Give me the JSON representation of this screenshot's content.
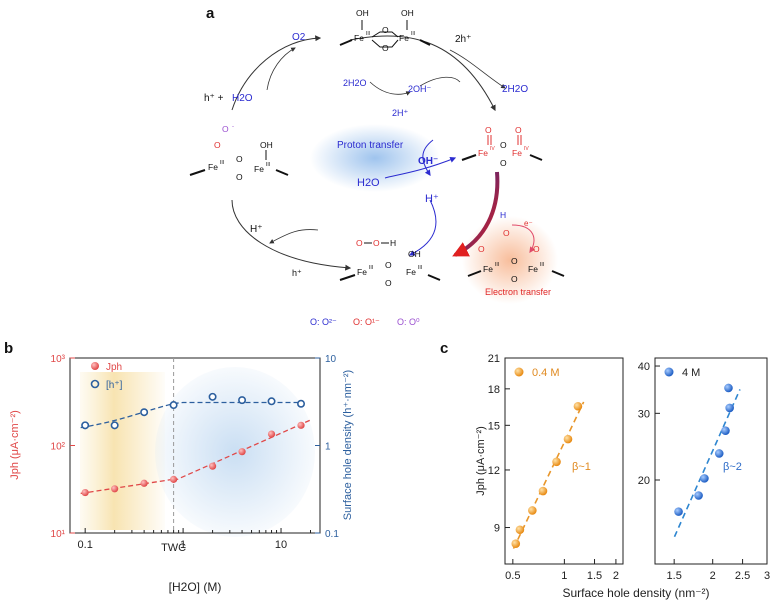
{
  "panel_a": {
    "letter": "a",
    "colors": {
      "blue": "#2b2bd0",
      "red": "#e03030",
      "purple": "#9a4fd0",
      "orange_text": "#e02828"
    },
    "labels": {
      "o2": "O2",
      "h_plus_h2o_h": "h⁺ + ",
      "h_plus_h2o_w": "H2O",
      "two_h_plus_top": "2h⁺",
      "two_h2o_right": "2H2O",
      "two_h2o_center": "2H2O",
      "two_oh": "2OH⁻",
      "two_h_plus_center": "2H⁺",
      "proton_transfer": "Proton transfer",
      "oh_minus": "OH⁻",
      "h2o_center": "H2O",
      "h_plus_center": "H⁺",
      "h_plus_left": "H⁺",
      "h_plus_small": "h⁺",
      "electron_transfer": "Electron transfer",
      "e_minus": "e⁻",
      "legend": [
        "O: O²⁻",
        "O: O¹⁻",
        "O: O⁰"
      ]
    }
  },
  "chart_data": [
    {
      "panel": "b",
      "type": "scatter",
      "x_scale": "log",
      "y_scale": "log",
      "y2_scale": "log",
      "xlabel": "[H2O] (M)",
      "ylabel": "Jph (μA·cm⁻²)",
      "y2label": "Surface hole density (h⁺·nm⁻²)",
      "xlim": [
        0.07,
        25
      ],
      "ylim": [
        10,
        1000
      ],
      "y2lim": [
        0.1,
        10
      ],
      "x_ticks": [
        0.1,
        1,
        10
      ],
      "x_tick_labels": [
        "0.1",
        "1",
        "10"
      ],
      "y_tick_labels": [
        "10¹",
        "10²",
        "10³"
      ],
      "y2_tick_labels": [
        "0.1",
        "1",
        "10"
      ],
      "annotation": "TWC",
      "twc_x": 0.8,
      "legend": [
        "Jph",
        "[h⁺]"
      ],
      "series": [
        {
          "name": "Jph",
          "axis": "left",
          "color": "#e04848",
          "x": [
            0.1,
            0.2,
            0.4,
            0.8,
            2,
            4,
            8,
            16
          ],
          "y": [
            29,
            32,
            37,
            41,
            58,
            85,
            135,
            170
          ]
        },
        {
          "name": "[h⁺]",
          "axis": "right",
          "color": "#2c5f9e",
          "x": [
            0.1,
            0.2,
            0.4,
            0.8,
            2,
            4,
            8,
            16
          ],
          "y": [
            1.7,
            1.7,
            2.4,
            2.9,
            3.6,
            3.3,
            3.2,
            3.0
          ]
        }
      ]
    },
    {
      "panel": "c-left",
      "type": "scatter",
      "x_scale": "log",
      "y_scale": "log",
      "xlabel": "Surface hole density (nm⁻²)",
      "ylabel": "Jph (μA·cm⁻²)",
      "xlim": [
        0.45,
        2.2
      ],
      "ylim": [
        7.5,
        21
      ],
      "x_ticks": [
        0.5,
        1,
        1.5,
        2
      ],
      "x_tick_labels": [
        "0.5",
        "1",
        "1.5",
        "2"
      ],
      "y_ticks": [
        9,
        12,
        15,
        18,
        21
      ],
      "y_tick_labels": [
        "9",
        "12",
        "15",
        "18",
        "21"
      ],
      "legend": [
        "0.4 M"
      ],
      "annotation": "β~1",
      "series": [
        {
          "name": "0.4 M",
          "color": "#f0a030",
          "x": [
            0.52,
            0.55,
            0.65,
            0.75,
            0.9,
            1.05,
            1.2
          ],
          "y": [
            8.3,
            8.9,
            9.8,
            10.8,
            12.5,
            14.0,
            16.5
          ]
        }
      ]
    },
    {
      "panel": "c-right",
      "type": "scatter",
      "x_scale": "log",
      "y_scale": "log",
      "xlim": [
        1.3,
        3.0
      ],
      "ylim": [
        12,
        42
      ],
      "x_ticks": [
        1.5,
        2,
        2.5,
        3
      ],
      "x_tick_labels": [
        "1.5",
        "2",
        "2.5",
        "3"
      ],
      "y_ticks": [
        20,
        30,
        40
      ],
      "y_tick_labels": [
        "20",
        "30",
        "40"
      ],
      "legend": [
        "4 M"
      ],
      "annotation": "β~2",
      "series": [
        {
          "name": "4 M",
          "color": "#2e6cc8",
          "x": [
            1.55,
            1.8,
            1.88,
            2.1,
            2.2,
            2.27,
            2.25
          ],
          "y": [
            16.5,
            18.2,
            20.2,
            23.5,
            27.0,
            31.0,
            35.0
          ]
        }
      ]
    }
  ]
}
